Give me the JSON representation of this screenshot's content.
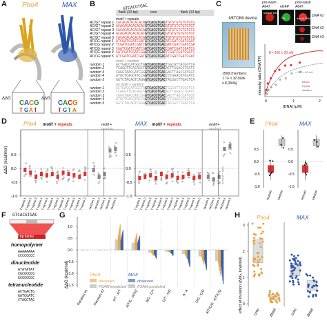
{
  "panels": {
    "A": "A",
    "B": "B",
    "C": "C",
    "D": "D",
    "E": "E",
    "F": "F",
    "G": "G",
    "H": "H"
  },
  "tf": {
    "pho4": "Pho4",
    "max": "MAX"
  },
  "panelA": {
    "ddg": "ΔΔG"
  },
  "panelB": {
    "flank_label": "flank (13 bp)",
    "core_label": "core",
    "core_seq": "GTCACGTGAC",
    "motif_repeats": "motif + repeats",
    "motif_random": "motif + random",
    "no_motif_random": "no motif + random",
    "repeat_names": [
      "AC/GT repeat 1",
      "AC/GT repeat 2",
      "AC/GT repeat 3",
      "AC/GT repeat 4",
      "AC/GT repeat 5",
      "AT/CG repeat 1",
      "AT/CG repeat 2",
      "AT/CG repeat 3",
      "AT/CG repeat 4",
      "AT/CG repeat 5"
    ],
    "repeat_left": [
      "CACACACACACACA",
      "ACACACACACACAC",
      "CACACACACACACA",
      "ACACACACACACAC",
      "CACACACACACACA",
      "ATCGATCGATCGAT",
      "TCGATCGATCGATC",
      "CGATCGATCGATCG",
      "GATCGATCGATCGA",
      "ATCGATCGATCGAT"
    ],
    "repeat_right": [
      "TGTGTGTGTGTGTG",
      "GTGTGTGTGTGTGT",
      "TGTGTGTGTGTGTG",
      "GTGTGTGTGTGTGT",
      "TGTGTGTGTGTGTG",
      "ATCGATCGATCGAT",
      "GATCGATCGATCGA",
      "CGATCGATCGATCG",
      "TCGATCGATCGATC",
      "ATCGATCGATCGAT"
    ],
    "random_names": [
      "random 1",
      "random 2",
      "random 3",
      "random 4",
      "random 5"
    ],
    "random_left": [
      "GCTGACCATGGCTA",
      "TCAGGTTCACAGCT",
      "CAGGTAACGATCGG",
      "ATGCTCAGGTACCA",
      "GGTCTACAGTCAGA"
    ],
    "random_right": [
      "TGGCATTACGGTCA",
      "ACTTGGACCTGATC",
      "GACTTAGCCATGGT",
      "CCTGAACGTGCATC",
      "TACGGCTTGACTCA"
    ]
  },
  "panelC": {
    "device": "MITOMI device",
    "chambers": "1568 chambers:",
    "chambers2": "1 TF x 32 DNA",
    "chambers3": "x 8 [DNA]",
    "prewash": "pre-wash",
    "postwash": "post-wash",
    "a647": "A647",
    "egfp": "eGFP",
    "soluble_dna": "soluble DNA",
    "tfs": "TFs",
    "bound_dna": "bound DNA",
    "dna_labels": [
      "DNA #1",
      "DNA #2",
      "DNA #3"
    ],
    "kd1": "K",
    "kd1_val": "= 260 ± 20 nM",
    "kd2_val": "= 540 ± 80 nM",
    "ylabel": "intensity ratio (DNA/TF)",
    "xlabel": "[DNA] (µM)",
    "xticks": [
      "0",
      "1",
      "2"
    ],
    "legend": [
      "flanks",
      "repeat",
      "random"
    ]
  },
  "panelD": {
    "ylabel": "ΔΔG (kcal/mol)",
    "yticks": [
      "0.5",
      "0.0",
      "-0.5",
      "-1.0"
    ],
    "motif_repeats": "motif + repeats",
    "motif_random": "motif + random",
    "no_motif": "no motif + rand",
    "categories": [
      "AC/GT repeat 1",
      "AC/GT repeat 2",
      "AC/GT repeat 3",
      "AC/GT repeat 4",
      "AC/GT repeat 5",
      "AT/CG repeat 1",
      "AT/CG repeat 2",
      "AT/CG repeat 3",
      "AT/CG repeat 4",
      "AT/CG repeat 5",
      "GC/AT repeat 1",
      "GC/AT repeat 2",
      "random 1",
      "random 2",
      "random 3",
      "random 4",
      "random 5"
    ]
  },
  "panelE": {
    "ylabel": "ΔΔG (kcal/mol)",
    "yticks": [
      "0.5",
      "0.0",
      "-0.5",
      "-1.0"
    ],
    "xlabels": [
      "repeats",
      "random"
    ]
  },
  "panelF": {
    "core": "GTCACGTGAC",
    "flanks": "60 bp flanks",
    "homopolymer": "homopolymer",
    "homo_seqs": [
      "AAAAAAAA",
      "CCCCCCCC"
    ],
    "dinucleotide": "dinucleotide",
    "di_seqs": [
      "ATATATAT",
      "CGCGCGCG",
      "GCGCGCGC"
    ],
    "tetranucleotide": "tetranucleotide",
    "tetra_seqs": [
      "ACTGACTG",
      "GATCGATC",
      "CTAGCTAG"
    ]
  },
  "panelG": {
    "ylabel": "ΔΔG (kcal/mol)",
    "yticks": [
      "1.0",
      "0.5",
      "0.0",
      "-0.5",
      "-1.0",
      "-1.5"
    ],
    "categories": [
      "Random #1",
      "Random #2",
      "A/T : A/T",
      "A/T/C : A/T/C",
      "A/G : C/T",
      "G/T : A/C",
      "A : A",
      "C/G : C/G",
      "A/T/C/G : A/T/C/G"
    ],
    "legend_pho4": "Pho4",
    "legend_max": "MAX",
    "observed": "observed",
    "psam": "PSAM-predicted"
  },
  "panelH": {
    "ylabel": "effect of mutation (ΔΔG, kcal/mol)",
    "yticks": [
      "3",
      "2",
      "1",
      "0"
    ],
    "xlabels": [
      "core",
      "distal"
    ]
  },
  "colors": {
    "pho4": "#e8a33a",
    "max": "#2e56a8",
    "red": "#d33333",
    "gray": "#999999"
  }
}
